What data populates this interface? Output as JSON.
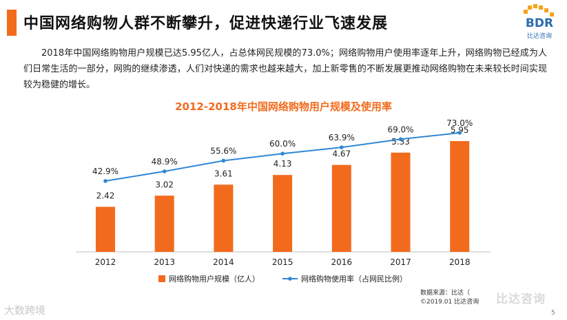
{
  "header": {
    "title": "中国网络购物人群不断攀升，促进快递行业飞速发展",
    "logo_text": "BDR",
    "logo_sub": "比达咨询"
  },
  "body_text": "2018年中国网络购物用户规模已达5.95亿人，占总体网民规模的73.0%；网络购物用户使用率逐年上升，网络购物已经成为人们日常生活的一部分，网购的继续渗透，人们对快递的需求也越来越大，加上新零售的不断发展更推动网络购物在未来较长时间实现较为稳健的增长。",
  "chart_data": {
    "type": "bar",
    "title": "2012-2018年中国网络购物用户规模及使用率",
    "categories": [
      "2012",
      "2013",
      "2014",
      "2015",
      "2016",
      "2017",
      "2018"
    ],
    "series": [
      {
        "name": "网络购物用户规模（亿人）",
        "kind": "bar",
        "color": "#f26b1d",
        "values": [
          2.42,
          3.02,
          3.61,
          4.13,
          4.67,
          5.33,
          5.95
        ],
        "labels": [
          "2.42",
          "3.02",
          "3.61",
          "4.13",
          "4.67",
          "5.33",
          "5.95"
        ]
      },
      {
        "name": "网络购物使用率（占网民比例）",
        "kind": "line",
        "color": "#2f86d6",
        "values": [
          42.9,
          48.9,
          55.6,
          60.0,
          63.9,
          69.0,
          73.0
        ],
        "labels": [
          "42.9%",
          "48.9%",
          "55.6%",
          "60.0%",
          "63.9%",
          "69.0%",
          "73.0%"
        ]
      }
    ],
    "bar_ylim": [
      0,
      6.5
    ],
    "line_ylim": [
      0,
      80
    ],
    "legend_position": "bottom-center"
  },
  "footer": {
    "source_line1": "数据来源：比达（",
    "source_line2": "©2019.01  比达咨询",
    "page_number": "5",
    "watermark_left": "大数跨境",
    "watermark_right": "比达咨询"
  }
}
